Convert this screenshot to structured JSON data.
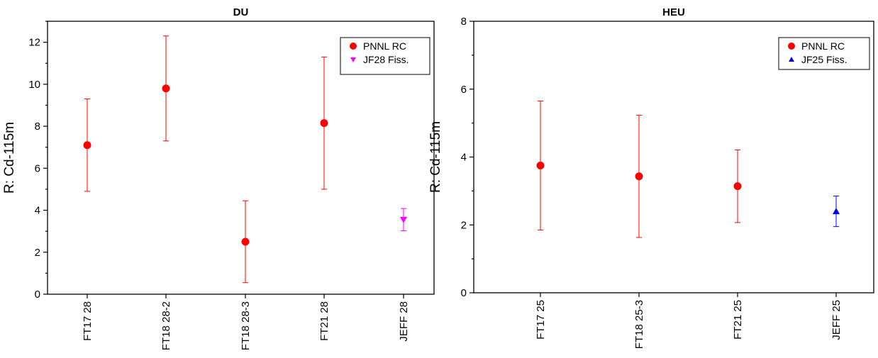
{
  "chart_data": [
    {
      "type": "scatter",
      "title": "DU",
      "xlabel": "",
      "ylabel": "R:  Cd-115m",
      "ylim": [
        0,
        13
      ],
      "yticks": [
        0,
        2,
        4,
        6,
        8,
        10,
        12
      ],
      "categories": [
        "FT17 28",
        "FT18 28-2",
        "FT18 28-3",
        "FT21 28",
        "JEFF 28"
      ],
      "legend_position": "top-right",
      "grid": false,
      "series": [
        {
          "name": "PNNL RC",
          "marker": "circle",
          "color": "#ff0000",
          "points": [
            {
              "category": "FT17 28",
              "y": 7.1,
              "err": 2.2
            },
            {
              "category": "FT18 28-2",
              "y": 9.8,
              "err": 2.5
            },
            {
              "category": "FT18 28-3",
              "y": 2.5,
              "err": 1.95
            },
            {
              "category": "FT21 28",
              "y": 8.15,
              "err": 3.15
            }
          ]
        },
        {
          "name": "JF28 Fiss.",
          "marker": "triangle-down",
          "color": "#ff00ff",
          "points": [
            {
              "category": "JEFF 28",
              "y": 3.55,
              "err": 0.53
            }
          ]
        }
      ]
    },
    {
      "type": "scatter",
      "title": "HEU",
      "xlabel": "",
      "ylabel": "R:  Cd-115m",
      "ylim": [
        0,
        8
      ],
      "yticks": [
        0,
        2,
        4,
        6,
        8
      ],
      "categories": [
        "FT17 25",
        "FT18 25-3",
        "FT21 25",
        "JEFF 25"
      ],
      "legend_position": "top-right",
      "grid": false,
      "series": [
        {
          "name": "PNNL RC",
          "marker": "circle",
          "color": "#ff0000",
          "points": [
            {
              "category": "FT17 25",
              "y": 3.75,
              "err": 1.9
            },
            {
              "category": "FT18 25-3",
              "y": 3.43,
              "err": 1.8
            },
            {
              "category": "FT21 25",
              "y": 3.14,
              "err": 1.07
            }
          ]
        },
        {
          "name": "JF25 Fiss.",
          "marker": "triangle-up",
          "color": "#0000ff",
          "points": [
            {
              "category": "JEFF 25",
              "y": 2.4,
              "err": 0.45
            }
          ]
        }
      ]
    }
  ]
}
